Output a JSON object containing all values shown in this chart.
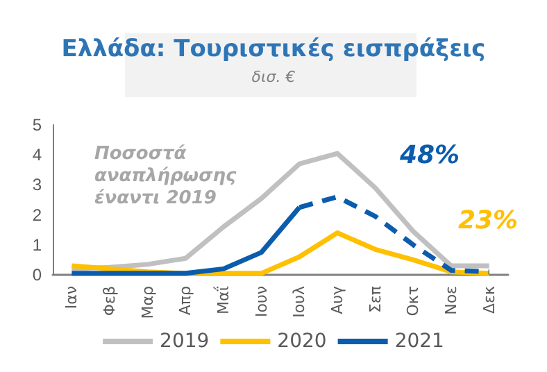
{
  "chart_data": {
    "type": "line",
    "title": "Ελλάδα: Τουριστικές εισπράξεις",
    "subtitle": "δισ. €",
    "categories": [
      "Ιαν",
      "Φεβ",
      "Μαρ",
      "Απρ",
      "Μαΐ",
      "Ιουν",
      "Ιουλ",
      "Αυγ",
      "Σεπ",
      "Οκτ",
      "Νοε",
      "Δεκ"
    ],
    "series": [
      {
        "name": "2019",
        "color": "#c0c0c0",
        "values": [
          0.2,
          0.25,
          0.35,
          0.55,
          1.6,
          2.55,
          3.7,
          4.05,
          2.9,
          1.45,
          0.3,
          0.3
        ]
      },
      {
        "name": "2020",
        "color": "#ffc000",
        "values": [
          0.3,
          0.2,
          0.1,
          0.05,
          0.05,
          0.05,
          0.6,
          1.4,
          0.85,
          0.5,
          0.1,
          0.05
        ]
      },
      {
        "name": "2021",
        "color": "#0b5cad",
        "values": [
          0.05,
          0.05,
          0.05,
          0.05,
          0.2,
          0.75,
          2.25,
          null,
          null,
          null,
          null,
          null
        ]
      },
      {
        "color": "#0b5cad",
        "line_style": "dashed",
        "values": [
          null,
          null,
          null,
          null,
          null,
          null,
          2.25,
          2.6,
          1.95,
          1.0,
          0.15,
          0.1
        ]
      }
    ],
    "ylim": [
      0,
      5
    ],
    "yticks": [
      0,
      1,
      2,
      3,
      4,
      5
    ],
    "grid": false,
    "legend": "bottom",
    "marker": "none",
    "line_style": "solid",
    "annotations": [
      "Ποσοστά\nαναπλήρωσης\nέναντι 2019",
      "48%",
      "23%"
    ]
  }
}
